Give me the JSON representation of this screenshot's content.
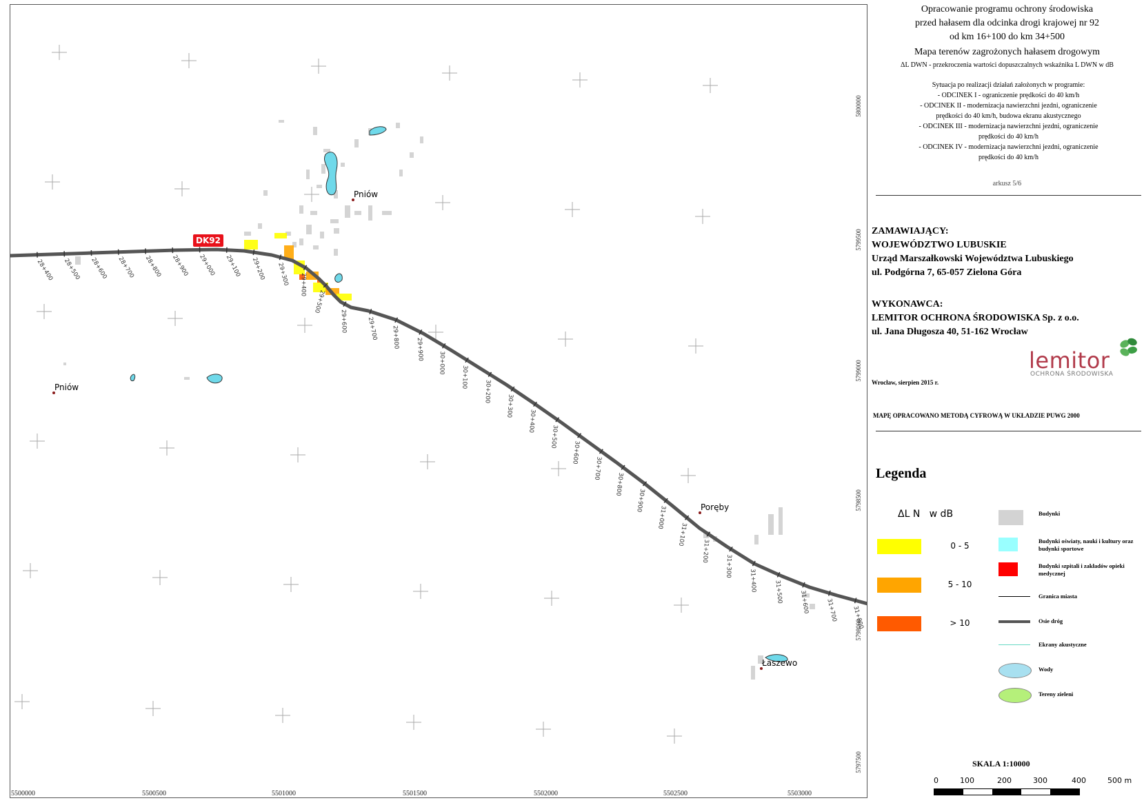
{
  "header": {
    "line1": "Opracowanie programu ochrony środowiska",
    "line2": "przed hałasem dla odcinka drogi krajowej nr 92",
    "line3": "od km 16+100 do km 34+500",
    "line4": "Mapa terenów zagrożonych hałasem drogowym",
    "line5": "ΔL DWN - przekroczenia wartości dopuszczalnych wskaźnika L DWN w dB"
  },
  "situation": [
    "Sytuacja po realizacji działań założonych w programie:",
    "- ODCINEK I - ograniczenie prędkości do 40 km/h",
    "- ODCINEK II - modernizacja nawierzchni jezdni, ograniczenie",
    "prędkości do 40 km/h, budowa ekranu akustycznego",
    "- ODCINEK III - modernizacja nawierzchni jezdni, ograniczenie",
    "prędkości do 40 km/h",
    "- ODCINEK IV - modernizacja nawierzchni jezdni, ograniczenie",
    "prędkości do 40 km/h"
  ],
  "sheet": "arkusz 5/6",
  "client": {
    "label": "ZAMAWIAJĄCY:",
    "lines": [
      "WOJEWÓDZTWO LUBUSKIE",
      "Urząd Marszałkowski Województwa Lubuskiego",
      "ul. Podgórna 7, 65-057 Zielona Góra"
    ]
  },
  "contractor": {
    "label": "WYKONAWCA:",
    "lines": [
      "LEMITOR OCHRONA ŚRODOWISKA Sp. z o.o.",
      "ul. Jana Długosza 40, 51-162 Wrocław"
    ]
  },
  "logo": {
    "name": "lemitor",
    "sub": "OCHRONA ŚRODOWISKA"
  },
  "date": "Wrocław, sierpien 2015 r.",
  "method": "MAPĘ OPRACOWANO METODĄ CYFROWĄ W UKŁADZIE PUWG 2000",
  "legend": {
    "title": "Legenda",
    "dl_header": "ΔL N   w dB",
    "classes": [
      {
        "label": "0 - 5",
        "color": "#ffff00"
      },
      {
        "label": "5 - 10",
        "color": "#ffa500"
      },
      {
        "label": "> 10",
        "color": "#ff5a00"
      }
    ],
    "items": [
      {
        "label": "Budynki",
        "icon": "building-icon",
        "color": "#d3d3d3"
      },
      {
        "label": "Budynki oświaty, nauki i kultury oraz budynki sportowe",
        "icon": "school-building-icon",
        "color": "#99ffff"
      },
      {
        "label": "Budynki szpitali i zakładów opieki medycznej",
        "icon": "hospital-building-icon",
        "color": "#ff0000"
      },
      {
        "label": "Granica miasta",
        "icon": "city-boundary-icon",
        "color": "#000000"
      },
      {
        "label": "Osie dróg",
        "icon": "road-axis-icon",
        "color": "#555555"
      },
      {
        "label": "Ekrany akustyczne",
        "icon": "noise-barrier-icon",
        "color": "#66d9c4"
      },
      {
        "label": "Wody",
        "icon": "water-icon",
        "color": "#a8e0f0"
      },
      {
        "label": "Tereny zieleni",
        "icon": "green-area-icon",
        "color": "#b5f07a"
      }
    ]
  },
  "scale": {
    "title": "SKALA 1:10000",
    "ticks": [
      "0",
      "100",
      "200",
      "300",
      "400",
      "500 m"
    ]
  },
  "map": {
    "road_label": "DK92",
    "road_color": "#555555",
    "road_label_color": "#e8111a",
    "water_color": "#6fd9ea",
    "places": [
      "Pniów",
      "Pniów",
      "Poręby",
      "Łaszewo"
    ],
    "x_ticks": [
      "5500000",
      "5500500",
      "5501000",
      "5501500",
      "5502000",
      "5502500",
      "5503000"
    ],
    "y_ticks": [
      "5800000",
      "5799500",
      "5799000",
      "5798500",
      "5798000",
      "5797500"
    ],
    "chainage": [
      "28+400",
      "28+500",
      "28+600",
      "28+700",
      "28+800",
      "28+900",
      "29+000",
      "29+100",
      "29+200",
      "29+300",
      "29+400",
      "29+500",
      "29+600",
      "29+700",
      "29+800",
      "29+900",
      "30+000",
      "30+100",
      "30+200",
      "30+300",
      "30+400",
      "30+500",
      "30+600",
      "30+700",
      "30+800",
      "30+900",
      "31+000",
      "31+100",
      "31+200",
      "31+300",
      "31+400",
      "31+500",
      "31+600",
      "31+700",
      "31+800"
    ]
  }
}
